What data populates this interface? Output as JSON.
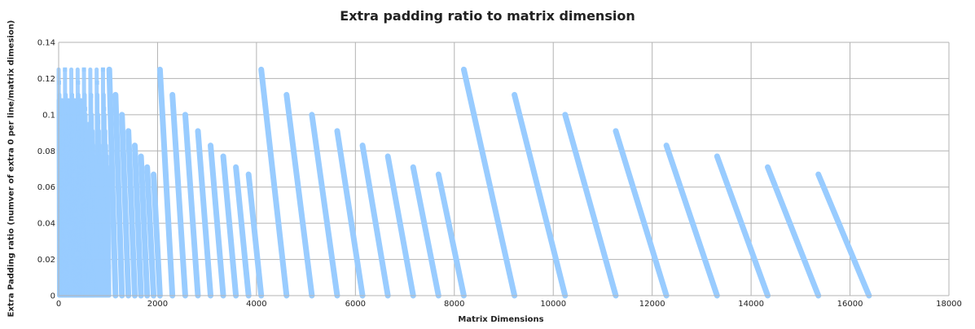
{
  "chart_data": {
    "type": "scatter",
    "title": "Extra padding ratio to matrix dimension",
    "xlabel": "Matrix Dimensions",
    "ylabel": "Extra Padding ratio (numver of extra 0 per line/matrix dimesion)",
    "xlim": [
      0,
      18000
    ],
    "ylim": [
      0,
      0.14
    ],
    "xticks": [
      "0",
      "2000",
      "4000",
      "6000",
      "8000",
      "10000",
      "12000",
      "14000",
      "16000",
      "18000"
    ],
    "yticks": [
      "0",
      "0.02",
      "0.04",
      "0.06",
      "0.08",
      "0.1",
      "0.12",
      "0.14"
    ],
    "grid": true,
    "legend": "none",
    "color": "#99ccff",
    "series": [
      {
        "segments": [
          {
            "x": [
              1024,
              1150
            ],
            "y": [
              0.125,
              0
            ]
          },
          {
            "x": [
              1150,
              1280
            ],
            "y": [
              0.111,
              0
            ]
          },
          {
            "x": [
              1280,
              1410
            ],
            "y": [
              0.1,
              0
            ]
          },
          {
            "x": [
              1410,
              1540
            ],
            "y": [
              0.091,
              0
            ]
          },
          {
            "x": [
              1540,
              1665
            ],
            "y": [
              0.083,
              0
            ]
          },
          {
            "x": [
              1665,
              1790
            ],
            "y": [
              0.077,
              0
            ]
          },
          {
            "x": [
              1790,
              1920
            ],
            "y": [
              0.071,
              0
            ]
          },
          {
            "x": [
              1920,
              2048
            ],
            "y": [
              0.067,
              0
            ]
          },
          {
            "x": [
              2048,
              2300
            ],
            "y": [
              0.125,
              0
            ]
          },
          {
            "x": [
              2300,
              2560
            ],
            "y": [
              0.111,
              0
            ]
          },
          {
            "x": [
              2560,
              2816
            ],
            "y": [
              0.1,
              0
            ]
          },
          {
            "x": [
              2816,
              3072
            ],
            "y": [
              0.091,
              0
            ]
          },
          {
            "x": [
              3072,
              3328
            ],
            "y": [
              0.083,
              0
            ]
          },
          {
            "x": [
              3328,
              3584
            ],
            "y": [
              0.077,
              0
            ]
          },
          {
            "x": [
              3584,
              3840
            ],
            "y": [
              0.071,
              0
            ]
          },
          {
            "x": [
              3840,
              4096
            ],
            "y": [
              0.067,
              0
            ]
          },
          {
            "x": [
              4096,
              4608
            ],
            "y": [
              0.125,
              0
            ]
          },
          {
            "x": [
              4608,
              5120
            ],
            "y": [
              0.111,
              0
            ]
          },
          {
            "x": [
              5120,
              5632
            ],
            "y": [
              0.1,
              0
            ]
          },
          {
            "x": [
              5632,
              6144
            ],
            "y": [
              0.091,
              0
            ]
          },
          {
            "x": [
              6144,
              6656
            ],
            "y": [
              0.083,
              0
            ]
          },
          {
            "x": [
              6656,
              7168
            ],
            "y": [
              0.077,
              0
            ]
          },
          {
            "x": [
              7168,
              7680
            ],
            "y": [
              0.071,
              0
            ]
          },
          {
            "x": [
              7680,
              8192
            ],
            "y": [
              0.067,
              0
            ]
          },
          {
            "x": [
              8192,
              9216
            ],
            "y": [
              0.125,
              0
            ]
          },
          {
            "x": [
              9216,
              10240
            ],
            "y": [
              0.111,
              0
            ]
          },
          {
            "x": [
              10240,
              11264
            ],
            "y": [
              0.1,
              0
            ]
          },
          {
            "x": [
              11264,
              12288
            ],
            "y": [
              0.091,
              0
            ]
          },
          {
            "x": [
              12288,
              13312
            ],
            "y": [
              0.083,
              0
            ]
          },
          {
            "x": [
              13312,
              14336
            ],
            "y": [
              0.077,
              0
            ]
          },
          {
            "x": [
              14336,
              15360
            ],
            "y": [
              0.071,
              0
            ]
          },
          {
            "x": [
              15360,
              16384
            ],
            "y": [
              0.067,
              0
            ]
          }
        ]
      }
    ]
  }
}
